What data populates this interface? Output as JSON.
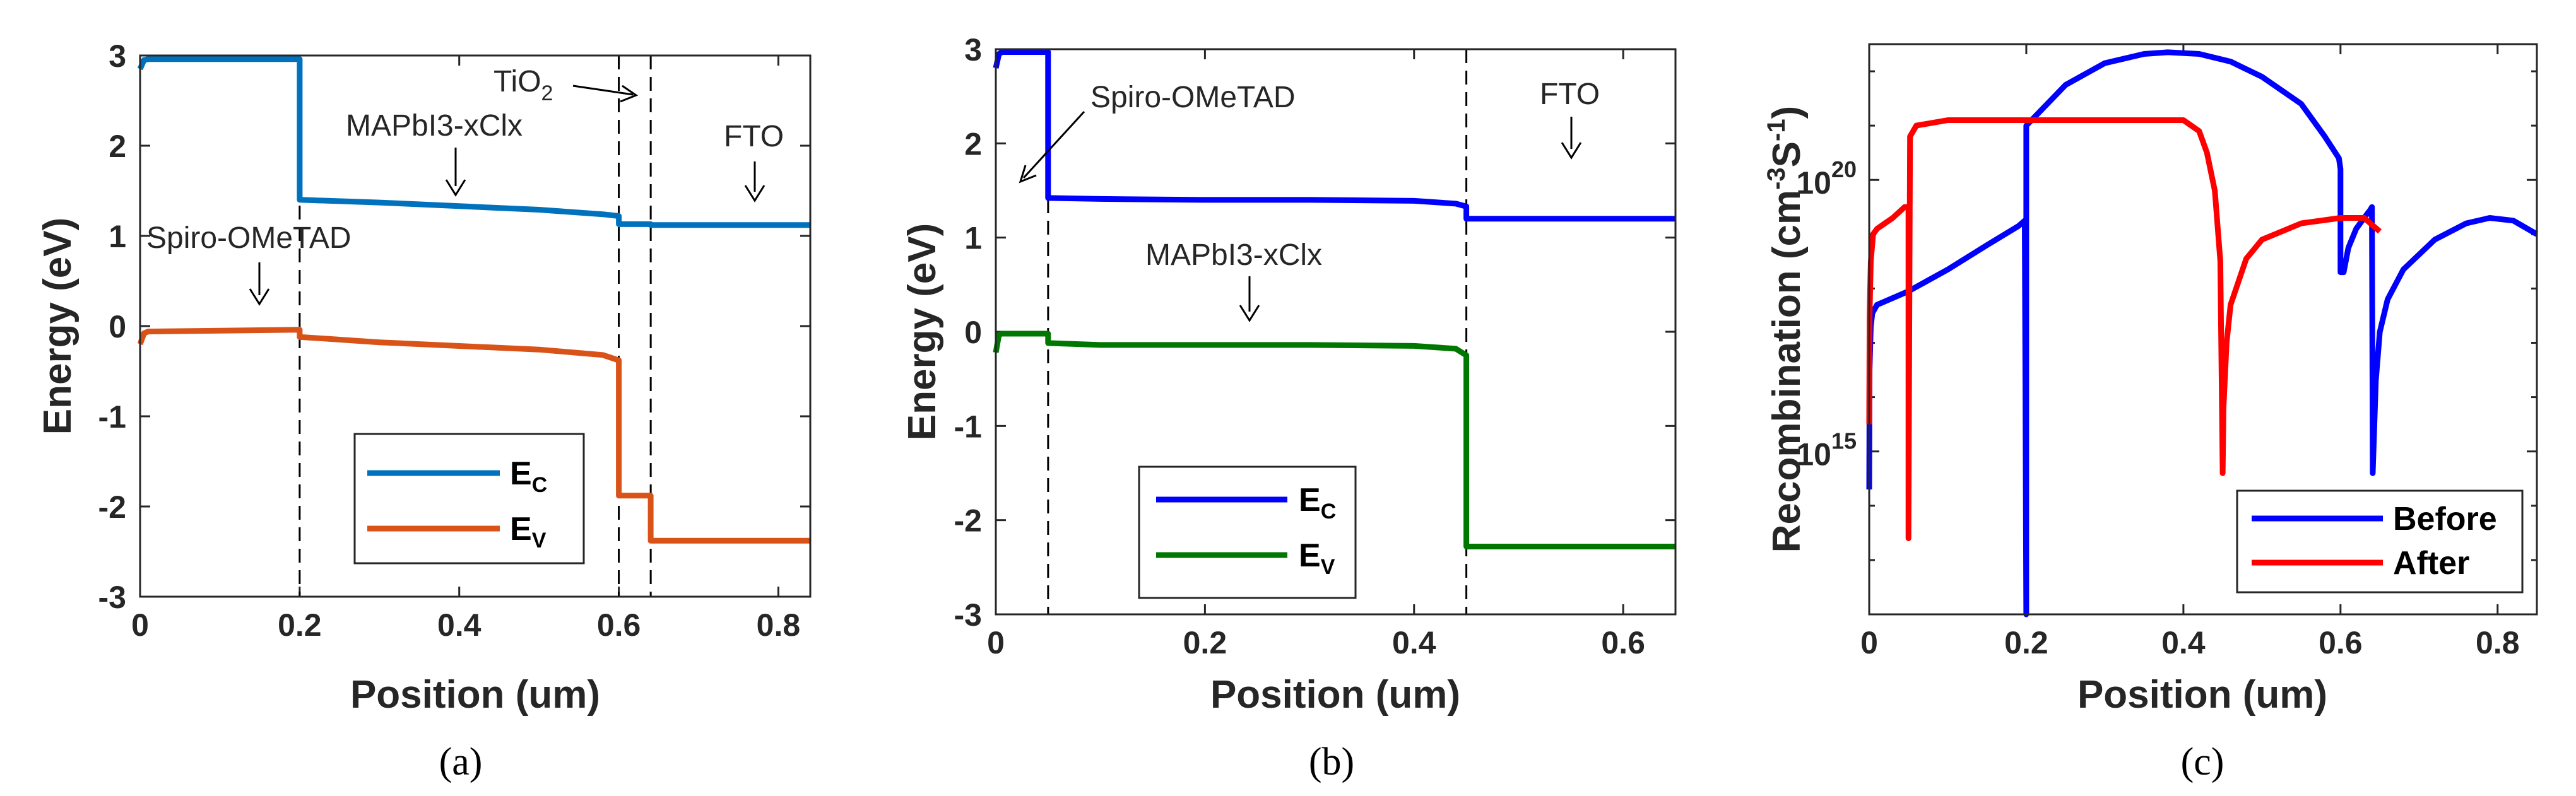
{
  "chart_data": [
    {
      "id": "a",
      "type": "line",
      "panel_label": "(a)",
      "xlabel": "Position (um)",
      "ylabel": "Energy (eV)",
      "xlim": [
        0,
        0.84
      ],
      "ylim": [
        -3,
        3
      ],
      "xticks": [
        0,
        0.2,
        0.4,
        0.6,
        0.8
      ],
      "xtick_labels": [
        "0",
        "0.2",
        "0.4",
        "0.6",
        "0.8"
      ],
      "yticks": [
        -3,
        -2,
        -1,
        0,
        1,
        2,
        3
      ],
      "ytick_labels": [
        "-3",
        "-2",
        "-1",
        "0",
        "1",
        "2",
        "3"
      ],
      "vlines": [
        0.2,
        0.6,
        0.64
      ],
      "series": [
        {
          "name": "E_C",
          "legend_main": "E",
          "legend_sub": "C",
          "color": "#0072BD",
          "x": [
            0,
            0.005,
            0.01,
            0.2,
            0.2,
            0.3,
            0.4,
            0.5,
            0.58,
            0.6,
            0.6,
            0.64,
            0.64,
            0.84
          ],
          "y": [
            2.85,
            2.95,
            2.96,
            2.96,
            1.4,
            1.37,
            1.33,
            1.29,
            1.24,
            1.22,
            1.13,
            1.13,
            1.12,
            1.12
          ]
        },
        {
          "name": "E_V",
          "legend_main": "E",
          "legend_sub": "V",
          "color": "#D95319",
          "x": [
            0,
            0.005,
            0.01,
            0.2,
            0.2,
            0.3,
            0.4,
            0.5,
            0.58,
            0.6,
            0.6,
            0.64,
            0.64,
            0.84
          ],
          "y": [
            -0.2,
            -0.08,
            -0.06,
            -0.04,
            -0.12,
            -0.18,
            -0.22,
            -0.26,
            -0.32,
            -0.38,
            -1.88,
            -1.88,
            -2.38,
            -2.38
          ]
        }
      ],
      "annotations": [
        {
          "text": "Spiro-OMeTAD",
          "x": 0.15,
          "y": -0.5
        },
        {
          "text": "MAPbI3-xClx",
          "x": 0.38,
          "y": 1.45
        },
        {
          "text": "TiO",
          "sub": "2",
          "x": 0.64,
          "y": 2.55
        },
        {
          "text": "FTO",
          "x": 0.77,
          "y": 1.2
        }
      ],
      "legend_position": "bottom-right"
    },
    {
      "id": "b",
      "type": "line",
      "panel_label": "(b)",
      "xlabel": "Position (um)",
      "ylabel": "Energy (eV)",
      "xlim": [
        0,
        0.65
      ],
      "ylim": [
        -3,
        3
      ],
      "xticks": [
        0,
        0.2,
        0.4,
        0.6
      ],
      "xtick_labels": [
        "0",
        "0.2",
        "0.4",
        "0.6"
      ],
      "yticks": [
        -3,
        -2,
        -1,
        0,
        1,
        2,
        3
      ],
      "ytick_labels": [
        "-3",
        "-2",
        "-1",
        "0",
        "1",
        "2",
        "3"
      ],
      "vlines": [
        0.05,
        0.45
      ],
      "series": [
        {
          "name": "E_C",
          "legend_main": "E",
          "legend_sub": "C",
          "color": "#0000FF",
          "x": [
            0,
            0.003,
            0.006,
            0.05,
            0.05,
            0.1,
            0.2,
            0.3,
            0.4,
            0.44,
            0.45,
            0.45,
            0.65
          ],
          "y": [
            2.8,
            2.95,
            2.97,
            2.97,
            1.42,
            1.41,
            1.4,
            1.4,
            1.39,
            1.36,
            1.33,
            1.2,
            1.2
          ]
        },
        {
          "name": "E_V",
          "legend_main": "E",
          "legend_sub": "V",
          "color": "#007700",
          "x": [
            0,
            0.003,
            0.006,
            0.05,
            0.05,
            0.1,
            0.2,
            0.3,
            0.4,
            0.44,
            0.45,
            0.45,
            0.65
          ],
          "y": [
            -0.22,
            -0.03,
            -0.02,
            -0.02,
            -0.12,
            -0.14,
            -0.14,
            -0.14,
            -0.15,
            -0.18,
            -0.25,
            -2.28,
            -2.28
          ]
        }
      ],
      "annotations": [
        {
          "text": "Spiro-OMeTAD",
          "x": 0.16,
          "y": 2.45
        },
        {
          "text": "MAPbI3-xClx",
          "x": 0.24,
          "y": 0.7
        },
        {
          "text": "FTO",
          "x": 0.55,
          "y": 2.45
        }
      ],
      "legend_position": "bottom-left"
    },
    {
      "id": "c",
      "type": "line",
      "panel_label": "(c)",
      "xlabel": "Position (um)",
      "ylabel": "Recombination (cm^-3 S^-1)",
      "ylabel_parts": {
        "main": "Recombination (cm",
        "sup1": "-3",
        "mid": "S",
        "sup2": "-1",
        "end": ")"
      },
      "yscale": "log",
      "xlim": [
        0,
        0.85
      ],
      "ylim_log10": [
        12,
        22.5
      ],
      "xticks": [
        0,
        0.2,
        0.4,
        0.6,
        0.8
      ],
      "xtick_labels": [
        "0",
        "0.2",
        "0.4",
        "0.6",
        "0.8"
      ],
      "yticks_log10": [
        15,
        20
      ],
      "ytick_base": "10",
      "ytick_exponents": [
        "15",
        "20"
      ],
      "series": [
        {
          "name": "Before",
          "color": "#0000FF",
          "x": [
            0,
            0.0005,
            0.002,
            0.004,
            0.01,
            0.05,
            0.1,
            0.15,
            0.19,
            0.198,
            0.2,
            0.2,
            0.25,
            0.3,
            0.35,
            0.38,
            0.42,
            0.46,
            0.5,
            0.55,
            0.58,
            0.598,
            0.6,
            0.6,
            0.604,
            0.61,
            0.62,
            0.63,
            0.638,
            0.64,
            0.641,
            0.645,
            0.65,
            0.66,
            0.68,
            0.72,
            0.76,
            0.79,
            0.82,
            0.85
          ],
          "y": [
            14.3,
            16.5,
            17.3,
            17.55,
            17.7,
            17.95,
            18.35,
            18.8,
            19.15,
            19.25,
            12.0,
            21.0,
            21.75,
            22.15,
            22.32,
            22.35,
            22.32,
            22.18,
            21.9,
            21.4,
            20.8,
            20.4,
            20.2,
            18.3,
            18.3,
            18.75,
            19.1,
            19.3,
            19.45,
            19.5,
            14.6,
            16.3,
            17.2,
            17.8,
            18.35,
            18.9,
            19.2,
            19.3,
            19.25,
            19.0
          ]
        },
        {
          "name": "After",
          "color": "#FF0000",
          "x": [
            0,
            0.0005,
            0.002,
            0.005,
            0.01,
            0.03,
            0.045,
            0.05,
            0.05,
            0.052,
            0.06,
            0.1,
            0.2,
            0.3,
            0.4,
            0.42,
            0.43,
            0.44,
            0.447,
            0.45,
            0.451,
            0.455,
            0.46,
            0.48,
            0.5,
            0.55,
            0.6,
            0.63,
            0.65
          ],
          "y": [
            15.5,
            17.5,
            18.5,
            19.0,
            19.1,
            19.3,
            19.5,
            19.5,
            13.4,
            20.8,
            21.0,
            21.1,
            21.1,
            21.1,
            21.1,
            20.9,
            20.5,
            19.8,
            18.5,
            14.6,
            15.8,
            17.0,
            17.7,
            18.55,
            18.9,
            19.2,
            19.3,
            19.3,
            19.05
          ]
        }
      ],
      "legend_position": "bottom-right"
    }
  ]
}
